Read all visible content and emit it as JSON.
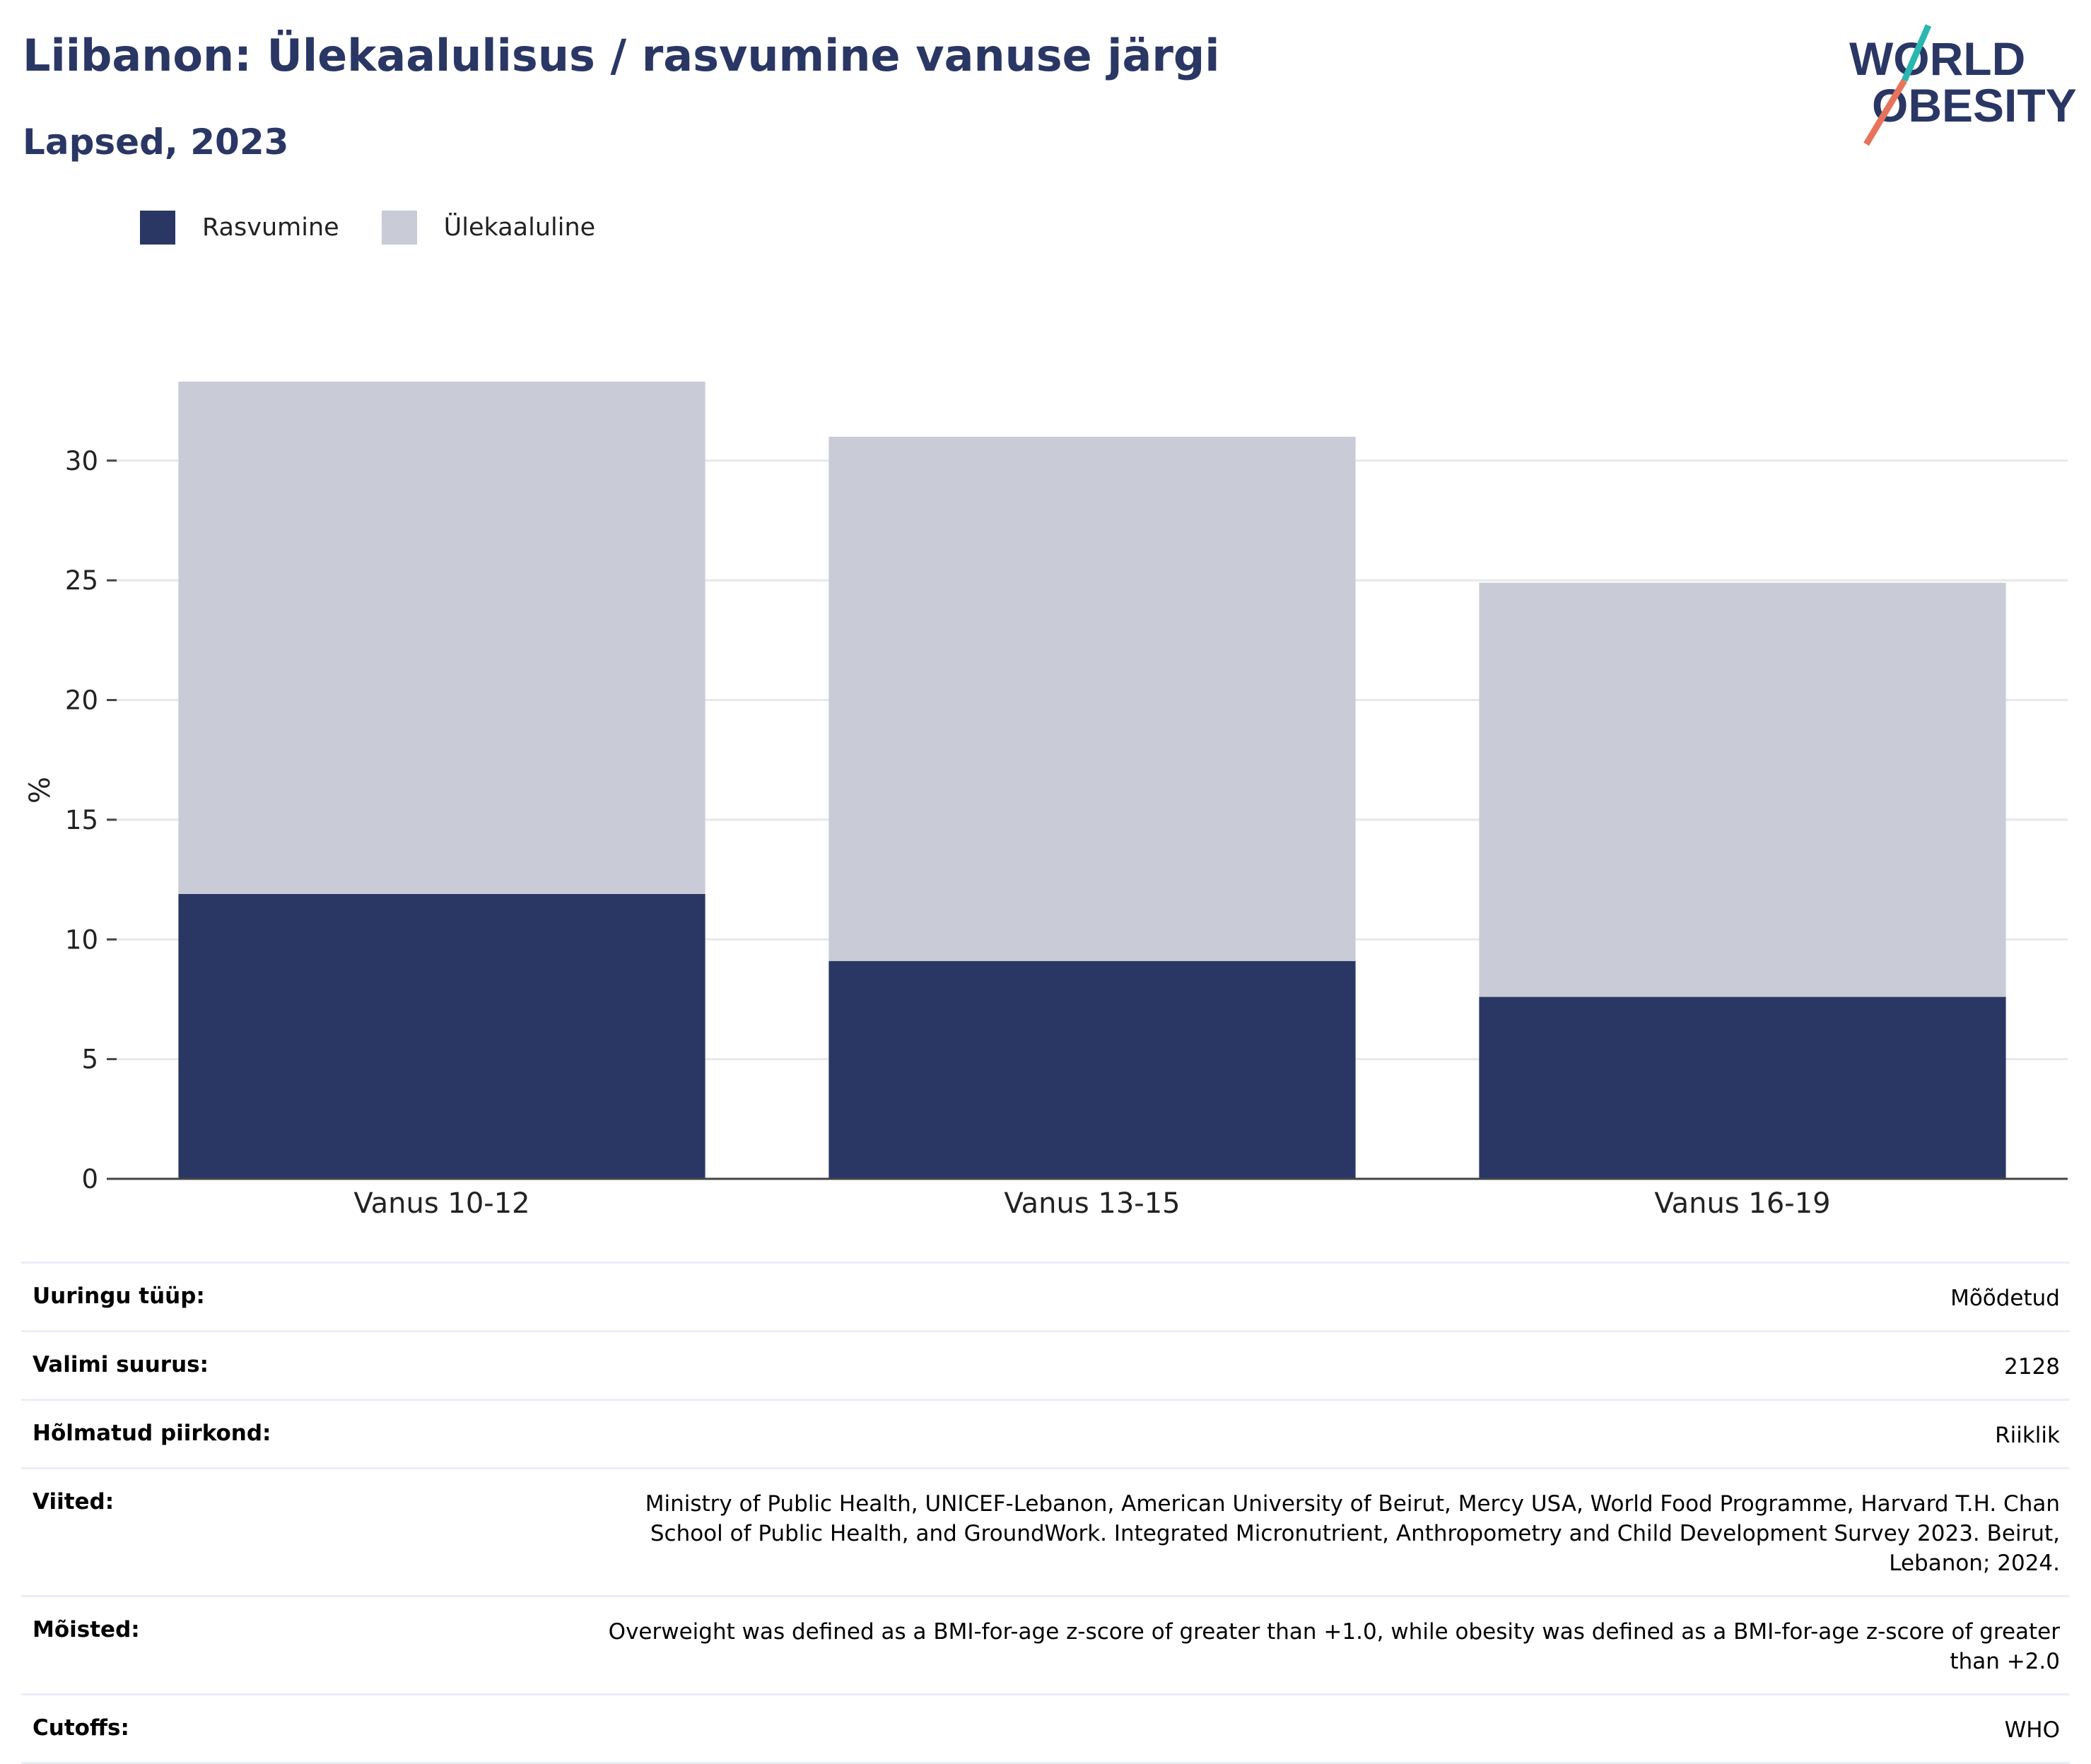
{
  "header": {
    "title": "Liibanon: Ülekaalulisus / rasvumine vanuse järgi",
    "subtitle": "Lapsed, 2023",
    "logo_line1": "WORLD",
    "logo_line2": "OBESITY"
  },
  "colors": {
    "brand": "#2a3765",
    "obesity": "#2a3765",
    "overweight": "#c9ccd7",
    "logo_teal": "#2ab7b0",
    "logo_coral": "#e8735c"
  },
  "legend": [
    {
      "label": "Rasvumine",
      "color": "#2a3765"
    },
    {
      "label": "Ülekaaluline",
      "color": "#c9ccd7"
    }
  ],
  "chart_data": {
    "type": "bar",
    "stacked": true,
    "categories": [
      "Vanus 10-12",
      "Vanus 13-15",
      "Vanus 16-19"
    ],
    "series": [
      {
        "name": "Rasvumine",
        "values": [
          11.9,
          9.1,
          7.6
        ]
      },
      {
        "name": "Ülekaaluline",
        "values": [
          21.4,
          21.9,
          17.3
        ]
      }
    ],
    "ylabel": "%",
    "ylim": [
      0,
      33.3
    ],
    "yticks": [
      0,
      5,
      10,
      15,
      20,
      25,
      30
    ],
    "grid": true,
    "legend_position": "top-left"
  },
  "meta": [
    {
      "label": "Uuringu tüüp:",
      "value": "Mõõdetud"
    },
    {
      "label": "Valimi suurus:",
      "value": "2128"
    },
    {
      "label": "Hõlmatud piirkond:",
      "value": "Riiklik"
    },
    {
      "label": "Viited:",
      "value": "Ministry of Public Health, UNICEF-Lebanon, American University of Beirut, Mercy USA, World Food Programme, Harvard T.H. Chan School of Public Health, and GroundWork. Integrated Micronutrient, Anthropometry and Child Development Survey 2023. Beirut, Lebanon; 2024."
    },
    {
      "label": "Mõisted:",
      "value": "Overweight was defined as a BMI-for-age z-score of greater than +1.0, while obesity was defined as a BMI-for-age z-score of greater than +2.0"
    },
    {
      "label": "Cutoffs:",
      "value": "WHO"
    }
  ]
}
